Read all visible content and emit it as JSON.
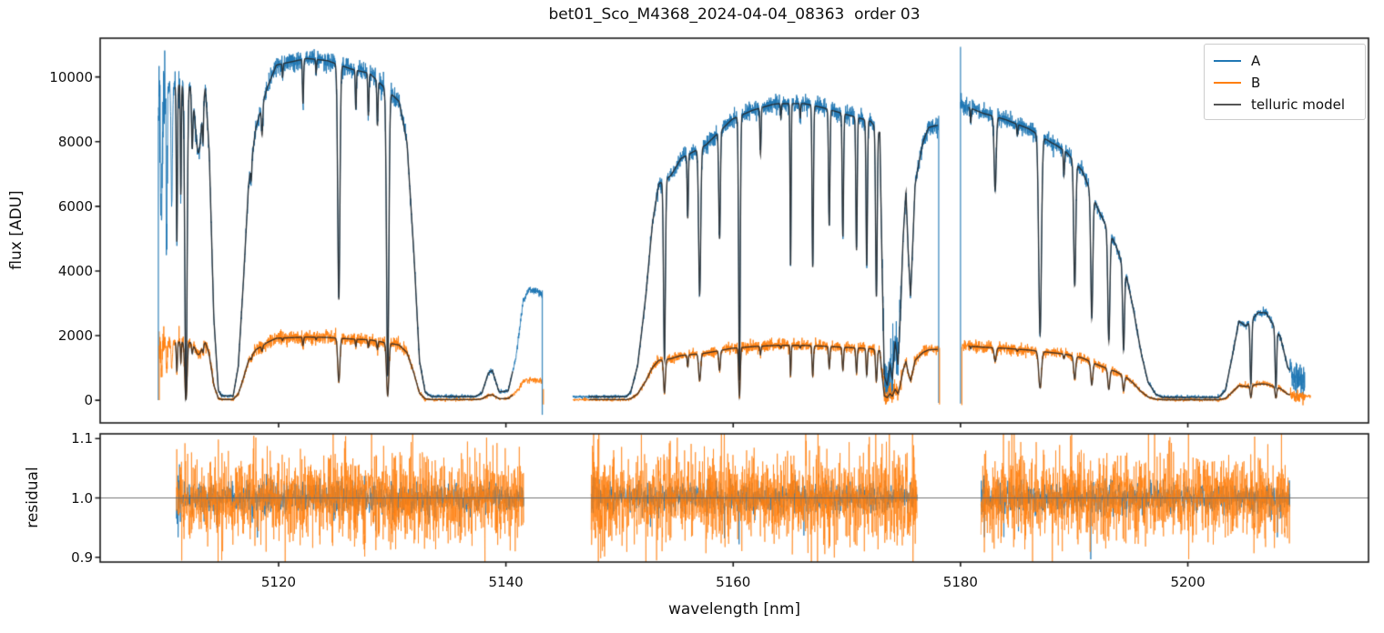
{
  "figure": {
    "title": "bet01_Sco_M4368_2024-04-04_08363  order 03",
    "xlabel": "wavelength [nm]",
    "background_color": "#ffffff",
    "axis_color": "#1a1a1a",
    "model_color": "#555555",
    "a_color": "#1f77b4",
    "b_color": "#ff7f0e"
  },
  "legend": {
    "position": "upper right",
    "entries": [
      {
        "label": "A",
        "color": "#1f77b4"
      },
      {
        "label": "B",
        "color": "#ff7f0e"
      },
      {
        "label": "telluric model",
        "color": "#555555"
      }
    ]
  },
  "chart_data": [
    {
      "id": "flux-panel",
      "type": "line",
      "ylabel": "flux [ADU]",
      "xlim": [
        5104.3,
        5215.9
      ],
      "ylim": [
        -700,
        11200
      ],
      "xticks": [
        5120,
        5140,
        5160,
        5180,
        5200
      ],
      "yticks": [
        0,
        2000,
        4000,
        6000,
        8000,
        10000
      ],
      "axes_rect": [
        110,
        42,
        1393,
        423
      ],
      "grid": false,
      "legend_entries": [
        "A",
        "B",
        "telluric model"
      ],
      "b_to_a_flux_ratio": 0.185,
      "continuum_A": [
        [
          5109.4,
          9800
        ],
        [
          5112,
          10000
        ],
        [
          5115,
          10300
        ],
        [
          5118,
          10550
        ],
        [
          5120,
          10700
        ],
        [
          5122.5,
          10800
        ],
        [
          5124.5,
          10650
        ],
        [
          5126.5,
          10500
        ],
        [
          5128.5,
          10400
        ],
        [
          5131,
          10250
        ],
        [
          5134,
          9900
        ],
        [
          5137,
          9500
        ],
        [
          5140,
          9100
        ],
        [
          5143.6,
          8700
        ],
        [
          5145.3,
          8800
        ],
        [
          5150,
          9050
        ],
        [
          5153,
          9150
        ],
        [
          5156,
          9250
        ],
        [
          5160,
          9350
        ],
        [
          5164,
          9450
        ],
        [
          5167,
          9400
        ],
        [
          5170,
          9300
        ],
        [
          5173,
          9200
        ],
        [
          5176,
          9100
        ],
        [
          5178.4,
          9050
        ],
        [
          5180,
          9300
        ],
        [
          5182,
          9050
        ],
        [
          5184,
          8900
        ],
        [
          5186,
          8750
        ],
        [
          5188,
          8600
        ],
        [
          5190,
          8500
        ],
        [
          5192,
          8350
        ],
        [
          5194,
          8200
        ],
        [
          5196,
          8050
        ],
        [
          5198,
          7900
        ],
        [
          5200,
          7700
        ],
        [
          5202,
          7550
        ],
        [
          5204,
          7450
        ],
        [
          5206,
          7350
        ],
        [
          5208,
          7250
        ],
        [
          5210.9,
          7100
        ]
      ],
      "segments": [
        {
          "data_range": [
            5109.42,
            5143.2
          ],
          "data_range_B": [
            5109.5,
            5143.2
          ],
          "model_range": [
            5110.9,
            5140.6
          ],
          "tbase": [
            [
              5109.4,
              0.92
            ],
            [
              5109.9,
              0.95
            ],
            [
              5110.4,
              0.985
            ],
            [
              5113.55,
              0.97
            ],
            [
              5113.9,
              0.75
            ],
            [
              5114.3,
              0.25
            ],
            [
              5114.7,
              0.03
            ],
            [
              5115.0,
              0.013
            ],
            [
              5116.0,
              0.013
            ],
            [
              5116.45,
              0.1
            ],
            [
              5116.9,
              0.35
            ],
            [
              5117.35,
              0.63
            ],
            [
              5118.0,
              0.8
            ],
            [
              5119.0,
              0.91
            ],
            [
              5119.8,
              0.97
            ],
            [
              5124.3,
              0.985
            ],
            [
              5126.4,
              0.975
            ],
            [
              5128.0,
              0.97
            ],
            [
              5130.6,
              0.9
            ],
            [
              5131.3,
              0.78
            ],
            [
              5131.9,
              0.45
            ],
            [
              5132.4,
              0.12
            ],
            [
              5132.9,
              0.025
            ],
            [
              5133.4,
              0.012
            ],
            [
              5137.3,
              0.012
            ],
            [
              5137.9,
              0.025
            ],
            [
              5138.45,
              0.09
            ],
            [
              5138.8,
              0.1
            ],
            [
              5139.4,
              0.028
            ],
            [
              5140.2,
              0.032
            ],
            [
              5140.9,
              0.15
            ],
            [
              5141.5,
              0.34
            ],
            [
              5142.0,
              0.385
            ],
            [
              5142.9,
              0.38
            ],
            [
              5143.25,
              0.37
            ]
          ],
          "lines": [
            [
              5109.7,
              0.5,
              0.05
            ],
            [
              5110.15,
              0.52,
              0.045
            ],
            [
              5110.6,
              0.38,
              0.06
            ],
            [
              5111.05,
              0.5,
              0.05
            ],
            [
              5111.4,
              0.35,
              0.04
            ],
            [
              5111.85,
              0.99,
              0.1
            ],
            [
              5112.4,
              0.18,
              0.06
            ],
            [
              5112.95,
              0.22,
              0.28
            ],
            [
              5113.35,
              0.12,
              0.045
            ],
            [
              5117.6,
              0.07,
              0.04
            ],
            [
              5118.55,
              0.1,
              0.06
            ],
            [
              5120.35,
              0.04,
              0.04
            ],
            [
              5122.15,
              0.13,
              0.05
            ],
            [
              5123.3,
              0.04,
              0.04
            ],
            [
              5125.3,
              0.7,
              0.095
            ],
            [
              5126.8,
              0.12,
              0.045
            ],
            [
              5127.9,
              0.13,
              0.05
            ],
            [
              5128.7,
              0.14,
              0.05
            ],
            [
              5129.6,
              0.92,
              0.1
            ]
          ],
          "noise_zones": [
            [
              5109.45,
              5110.25,
              700,
              140
            ],
            [
              5111.2,
              5111.7,
              320,
              70
            ]
          ],
          "spikes": [
            [
              5109.42,
              0,
              8800,
              "A"
            ],
            [
              5109.5,
              0,
              1700,
              "B"
            ],
            [
              5143.2,
              -450,
              3400,
              "A"
            ],
            [
              5143.3,
              -130,
              350,
              "B"
            ]
          ]
        },
        {
          "data_range": [
            5145.9,
            5178.05
          ],
          "data_range_B": [
            5145.9,
            5178.1
          ],
          "model_range": [
            5147.3,
            5178.0
          ],
          "tbase": [
            [
              5145.9,
              0.012
            ],
            [
              5150.6,
              0.012
            ],
            [
              5151.0,
              0.03
            ],
            [
              5151.6,
              0.12
            ],
            [
              5152.3,
              0.35
            ],
            [
              5152.9,
              0.6
            ],
            [
              5153.45,
              0.73
            ],
            [
              5154.5,
              0.755
            ],
            [
              5155.4,
              0.81
            ],
            [
              5157.6,
              0.85
            ],
            [
              5159.9,
              0.93
            ],
            [
              5161.7,
              0.955
            ],
            [
              5163.5,
              0.97
            ],
            [
              5166.2,
              0.975
            ],
            [
              5168.0,
              0.965
            ],
            [
              5170.0,
              0.95
            ],
            [
              5172.1,
              0.935
            ],
            [
              5172.9,
              0.9
            ],
            [
              5173.1,
              0.45
            ],
            [
              5173.3,
              0.08
            ],
            [
              5173.55,
              0.05
            ],
            [
              5173.8,
              0.12
            ],
            [
              5174.0,
              0.07
            ],
            [
              5174.25,
              0.2
            ],
            [
              5174.5,
              0.12
            ],
            [
              5174.7,
              0.28
            ],
            [
              5174.95,
              0.55
            ],
            [
              5175.2,
              0.71
            ],
            [
              5175.38,
              0.52
            ],
            [
              5175.6,
              0.35
            ],
            [
              5175.82,
              0.55
            ],
            [
              5176.0,
              0.73
            ],
            [
              5176.3,
              0.8
            ],
            [
              5176.7,
              0.88
            ],
            [
              5177.2,
              0.93
            ],
            [
              5178.05,
              0.94
            ]
          ],
          "lines": [
            [
              5153.95,
              0.82,
              0.08
            ],
            [
              5156.0,
              0.26,
              0.05
            ],
            [
              5157.05,
              0.58,
              0.09
            ],
            [
              5158.8,
              0.4,
              0.07
            ],
            [
              5160.55,
              0.93,
              0.07
            ],
            [
              5162.4,
              0.16,
              0.05
            ],
            [
              5164.2,
              0.05,
              0.04
            ],
            [
              5165.05,
              0.55,
              0.045
            ],
            [
              5165.9,
              0.05,
              0.04
            ],
            [
              5167.0,
              0.55,
              0.06
            ],
            [
              5168.45,
              0.4,
              0.06
            ],
            [
              5169.65,
              0.43,
              0.06
            ],
            [
              5170.85,
              0.47,
              0.06
            ],
            [
              5171.75,
              0.52,
              0.06
            ],
            [
              5172.6,
              0.62,
              0.07
            ]
          ],
          "noise_zones": [
            [
              5173.1,
              5174.8,
              350,
              110
            ]
          ],
          "spikes": [
            [
              5178.08,
              -80,
              8800,
              "A"
            ],
            [
              5178.15,
              -130,
              1620,
              "B"
            ]
          ]
        },
        {
          "data_range": [
            5180.0,
            5210.3
          ],
          "data_range_B": [
            5180.15,
            5210.85
          ],
          "model_range": [
            5180.7,
            5209.0
          ],
          "tbase": [
            [
              5180.05,
              0.985
            ],
            [
              5182.3,
              0.98
            ],
            [
              5184.0,
              0.975
            ],
            [
              5186.0,
              0.96
            ],
            [
              5188.4,
              0.92
            ],
            [
              5189.3,
              0.9
            ],
            [
              5190.7,
              0.84
            ],
            [
              5192.2,
              0.7
            ],
            [
              5193.7,
              0.58
            ],
            [
              5194.6,
              0.47
            ],
            [
              5195.2,
              0.35
            ],
            [
              5195.9,
              0.18
            ],
            [
              5196.5,
              0.07
            ],
            [
              5197.2,
              0.022
            ],
            [
              5197.8,
              0.012
            ],
            [
              5202.7,
              0.012
            ],
            [
              5203.3,
              0.04
            ],
            [
              5203.9,
              0.18
            ],
            [
              5204.5,
              0.33
            ],
            [
              5205.1,
              0.31
            ],
            [
              5206.2,
              0.37
            ],
            [
              5206.9,
              0.37
            ],
            [
              5208.15,
              0.27
            ],
            [
              5208.8,
              0.14
            ],
            [
              5209.4,
              0.1
            ],
            [
              5210.85,
              0.09
            ]
          ],
          "lines": [
            [
              5180.9,
              0.05,
              0.04
            ],
            [
              5183.05,
              0.26,
              0.09
            ],
            [
              5185.0,
              0.04,
              0.05
            ],
            [
              5187.0,
              0.75,
              0.12
            ],
            [
              5189.1,
              0.1,
              0.05
            ],
            [
              5190.05,
              0.52,
              0.09
            ],
            [
              5191.55,
              0.6,
              0.09
            ],
            [
              5193.05,
              0.65,
              0.09
            ],
            [
              5194.35,
              0.62,
              0.08
            ],
            [
              5205.55,
              0.8,
              0.07
            ],
            [
              5207.75,
              0.82,
              0.07
            ]
          ],
          "noise_zones": [
            [
              5209.0,
              5210.3,
              220,
              55
            ]
          ],
          "spikes": [
            [
              5180.0,
              -100,
              10930,
              "A"
            ],
            [
              5180.12,
              -150,
              1650,
              "B"
            ]
          ]
        }
      ],
      "noise": {
        "A_base": 26,
        "A_rel": 0.012,
        "B_base": 22,
        "B_rel": 0.04
      }
    },
    {
      "id": "residual-panel",
      "type": "line",
      "ylabel": "residual",
      "xlim": [
        5104.3,
        5215.9
      ],
      "ylim": [
        0.892,
        1.108
      ],
      "xticks": [
        5120,
        5140,
        5160,
        5180,
        5200
      ],
      "yticks": [
        0.9,
        1.0,
        1.1
      ],
      "axes_rect": [
        110,
        477,
        1393,
        141
      ],
      "hline": 1.0,
      "segments": [
        [
          5111.0,
          5141.6
        ],
        [
          5147.5,
          5176.2
        ],
        [
          5181.8,
          5209.0
        ]
      ],
      "sigma_A": 0.012,
      "sigma_B": 0.037
    }
  ]
}
